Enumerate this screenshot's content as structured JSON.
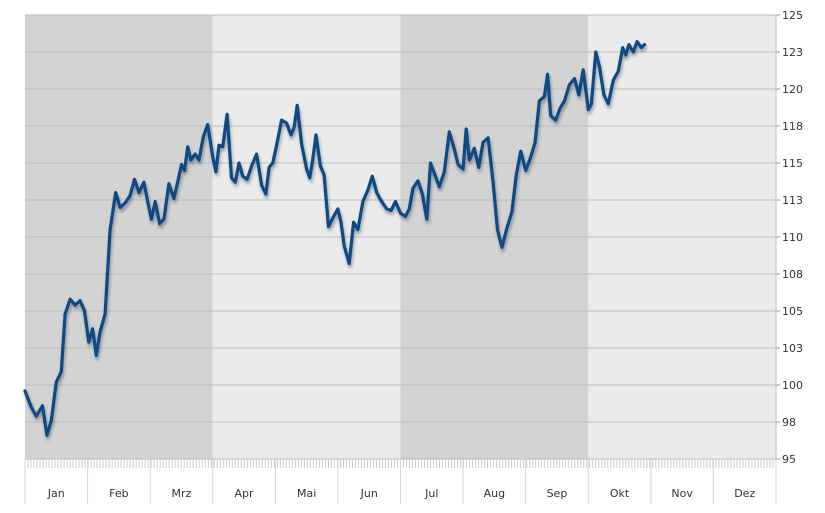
{
  "chart_data": {
    "type": "line",
    "title": "",
    "xlabel": "",
    "ylabel": "",
    "ylim": [
      95,
      125
    ],
    "y_ticks": [
      "95",
      "98",
      "100",
      "103",
      "105",
      "108",
      "110",
      "113",
      "115",
      "118",
      "120",
      "123",
      "125"
    ],
    "y_tick_values": [
      95,
      97.5,
      100,
      102.5,
      105,
      107.5,
      110,
      112.5,
      115,
      117.5,
      120,
      122.5,
      125
    ],
    "y_axis_position": "right",
    "months": [
      "Jan",
      "Feb",
      "Mrz",
      "Apr",
      "Mai",
      "Jun",
      "Jul",
      "Aug",
      "Sep",
      "Okt",
      "Nov",
      "Dez"
    ],
    "quarter_bands": [
      {
        "from_month": 0,
        "to_month": 3,
        "shade": "dark"
      },
      {
        "from_month": 3,
        "to_month": 6,
        "shade": "light"
      },
      {
        "from_month": 6,
        "to_month": 9,
        "shade": "dark"
      },
      {
        "from_month": 9,
        "to_month": 12,
        "shade": "light"
      }
    ],
    "grid": true,
    "series": [
      {
        "color": "#0d4a85",
        "points": [
          [
            0.0,
            99.6
          ],
          [
            0.1,
            98.5
          ],
          [
            0.18,
            97.9
          ],
          [
            0.28,
            98.6
          ],
          [
            0.35,
            96.6
          ],
          [
            0.42,
            97.6
          ],
          [
            0.5,
            100.2
          ],
          [
            0.58,
            100.9
          ],
          [
            0.64,
            104.8
          ],
          [
            0.72,
            105.8
          ],
          [
            0.8,
            105.4
          ],
          [
            0.88,
            105.7
          ],
          [
            0.95,
            105.0
          ],
          [
            1.02,
            102.9
          ],
          [
            1.08,
            103.8
          ],
          [
            1.14,
            102.0
          ],
          [
            1.2,
            103.6
          ],
          [
            1.28,
            104.8
          ],
          [
            1.36,
            110.5
          ],
          [
            1.45,
            113.0
          ],
          [
            1.52,
            112.0
          ],
          [
            1.6,
            112.3
          ],
          [
            1.68,
            112.8
          ],
          [
            1.75,
            113.9
          ],
          [
            1.82,
            113.0
          ],
          [
            1.9,
            113.7
          ],
          [
            1.96,
            112.4
          ],
          [
            2.02,
            111.2
          ],
          [
            2.08,
            112.4
          ],
          [
            2.15,
            110.9
          ],
          [
            2.22,
            111.2
          ],
          [
            2.3,
            113.6
          ],
          [
            2.38,
            112.6
          ],
          [
            2.45,
            113.9
          ],
          [
            2.5,
            114.9
          ],
          [
            2.55,
            114.5
          ],
          [
            2.6,
            116.1
          ],
          [
            2.65,
            115.2
          ],
          [
            2.72,
            115.6
          ],
          [
            2.78,
            115.2
          ],
          [
            2.85,
            116.8
          ],
          [
            2.92,
            117.6
          ],
          [
            3.0,
            115.4
          ],
          [
            3.05,
            114.4
          ],
          [
            3.1,
            116.2
          ],
          [
            3.16,
            116.1
          ],
          [
            3.23,
            118.3
          ],
          [
            3.3,
            114.0
          ],
          [
            3.36,
            113.7
          ],
          [
            3.42,
            115.0
          ],
          [
            3.48,
            114.1
          ],
          [
            3.55,
            113.9
          ],
          [
            3.62,
            114.8
          ],
          [
            3.7,
            115.6
          ],
          [
            3.78,
            113.5
          ],
          [
            3.85,
            112.9
          ],
          [
            3.9,
            114.7
          ],
          [
            3.96,
            115.0
          ],
          [
            4.02,
            116.2
          ],
          [
            4.1,
            117.9
          ],
          [
            4.18,
            117.7
          ],
          [
            4.25,
            116.9
          ],
          [
            4.3,
            117.4
          ],
          [
            4.35,
            118.9
          ],
          [
            4.42,
            116.3
          ],
          [
            4.5,
            114.6
          ],
          [
            4.55,
            114.0
          ],
          [
            4.6,
            115.3
          ],
          [
            4.65,
            116.9
          ],
          [
            4.72,
            114.8
          ],
          [
            4.78,
            114.2
          ],
          [
            4.85,
            110.7
          ],
          [
            4.92,
            111.3
          ],
          [
            5.0,
            111.9
          ],
          [
            5.05,
            111.0
          ],
          [
            5.1,
            109.4
          ],
          [
            5.18,
            108.2
          ],
          [
            5.25,
            111.0
          ],
          [
            5.32,
            110.5
          ],
          [
            5.4,
            112.4
          ],
          [
            5.48,
            113.2
          ],
          [
            5.55,
            114.1
          ],
          [
            5.62,
            113.0
          ],
          [
            5.7,
            112.4
          ],
          [
            5.78,
            111.9
          ],
          [
            5.85,
            111.8
          ],
          [
            5.92,
            112.4
          ],
          [
            6.0,
            111.6
          ],
          [
            6.08,
            111.4
          ],
          [
            6.14,
            111.9
          ],
          [
            6.2,
            113.3
          ],
          [
            6.28,
            113.8
          ],
          [
            6.35,
            112.9
          ],
          [
            6.42,
            111.2
          ],
          [
            6.48,
            115.0
          ],
          [
            6.55,
            114.2
          ],
          [
            6.62,
            113.4
          ],
          [
            6.7,
            114.4
          ],
          [
            6.78,
            117.1
          ],
          [
            6.85,
            116.1
          ],
          [
            6.92,
            114.9
          ],
          [
            7.0,
            114.6
          ],
          [
            7.05,
            117.3
          ],
          [
            7.1,
            115.2
          ],
          [
            7.18,
            116.0
          ],
          [
            7.25,
            114.7
          ],
          [
            7.32,
            116.4
          ],
          [
            7.4,
            116.7
          ],
          [
            7.48,
            113.7
          ],
          [
            7.55,
            110.5
          ],
          [
            7.62,
            109.3
          ],
          [
            7.7,
            110.6
          ],
          [
            7.78,
            111.7
          ],
          [
            7.85,
            114.2
          ],
          [
            7.92,
            115.8
          ],
          [
            8.0,
            114.5
          ],
          [
            8.08,
            115.4
          ],
          [
            8.15,
            116.4
          ],
          [
            8.22,
            119.2
          ],
          [
            8.3,
            119.5
          ],
          [
            8.35,
            121.0
          ],
          [
            8.4,
            118.2
          ],
          [
            8.48,
            117.9
          ],
          [
            8.55,
            118.7
          ],
          [
            8.62,
            119.2
          ],
          [
            8.7,
            120.3
          ],
          [
            8.78,
            120.7
          ],
          [
            8.85,
            119.6
          ],
          [
            8.92,
            121.3
          ],
          [
            9.0,
            118.6
          ],
          [
            9.05,
            119.0
          ],
          [
            9.12,
            122.5
          ],
          [
            9.18,
            121.5
          ],
          [
            9.25,
            119.6
          ],
          [
            9.32,
            119.0
          ],
          [
            9.4,
            120.6
          ],
          [
            9.48,
            121.2
          ],
          [
            9.55,
            122.8
          ],
          [
            9.6,
            122.3
          ],
          [
            9.65,
            123.0
          ],
          [
            9.72,
            122.5
          ],
          [
            9.78,
            123.2
          ],
          [
            9.85,
            122.8
          ],
          [
            9.9,
            123.0
          ]
        ]
      }
    ]
  }
}
